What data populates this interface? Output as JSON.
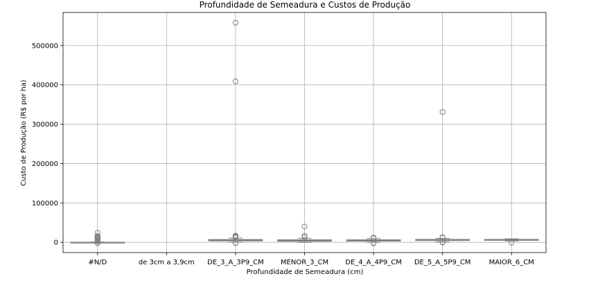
{
  "chart_data": {
    "type": "box",
    "title": "Profundidade de Semeadura e Custos de Produção",
    "xlabel": "Profundidade de Semeadura (cm)",
    "ylabel": "Custo de Produção (R$ por ha)",
    "ylim": [
      -26000,
      584000
    ],
    "yticks": [
      0,
      100000,
      200000,
      300000,
      400000,
      500000
    ],
    "grid": true,
    "colors": {
      "box": "#8da0cb",
      "edge": "#7f7f7f",
      "grid": "#b0b0b0"
    },
    "categories": [
      "#N/D",
      "de 3cm a 3,9cm",
      "DE_3_A_3P9_CM",
      "MENOR_3_CM",
      "DE_4_A_4P9_CM",
      "DE_5_A_5P9_CM",
      "MAIOR_6_CM"
    ],
    "boxes": [
      {
        "category": "#N/D",
        "q1": -200,
        "median": 0,
        "q3": 200,
        "whisker_low": -800,
        "whisker_high": 800,
        "outliers": [
          24000,
          16000,
          14000,
          12000,
          10000,
          8000,
          6000,
          4000,
          2500,
          -1500,
          -2000
        ]
      },
      {
        "category": "de 3cm a 3,9cm",
        "empty": true
      },
      {
        "category": "DE_3_A_3P9_CM",
        "q1": 3500,
        "median": 5200,
        "q3": 7200,
        "whisker_low": 0,
        "whisker_high": 11000,
        "outliers": [
          558000,
          409000,
          17000,
          15000,
          14000,
          13000,
          12000,
          -1500,
          -2000
        ]
      },
      {
        "category": "MENOR_3_CM",
        "q1": 2500,
        "median": 4500,
        "q3": 6500,
        "whisker_low": 0,
        "whisker_high": 10000,
        "outliers": [
          40000,
          17000,
          13000
        ]
      },
      {
        "category": "DE_4_A_4P9_CM",
        "q1": 3000,
        "median": 4600,
        "q3": 6500,
        "whisker_low": 0,
        "whisker_high": 9500,
        "outliers": [
          12000,
          10500,
          -1500,
          -2500
        ]
      },
      {
        "category": "DE_5_A_5P9_CM",
        "q1": 4500,
        "median": 6000,
        "q3": 7500,
        "whisker_low": 1500,
        "whisker_high": 10000,
        "outliers": [
          331000,
          13000,
          12000,
          500,
          -500
        ]
      },
      {
        "category": "MAIOR_6_CM",
        "q1": 5000,
        "median": 6500,
        "q3": 7500,
        "whisker_low": 3500,
        "whisker_high": 9000,
        "outliers": [
          -800
        ]
      }
    ]
  }
}
